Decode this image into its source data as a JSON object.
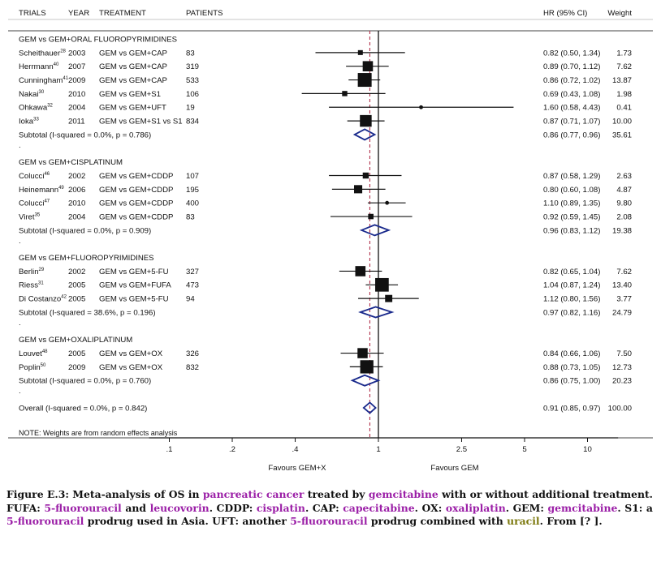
{
  "chart_data": {
    "type": "forest",
    "xscale": "log",
    "xlim": [
      0.08,
      14
    ],
    "null_line": 1,
    "overall_line": 0.91,
    "xticks": [
      {
        "v": 0.1,
        "label": ".1"
      },
      {
        "v": 0.2,
        "label": ".2"
      },
      {
        "v": 0.4,
        "label": ".4"
      },
      {
        "v": 1,
        "label": "1"
      },
      {
        "v": 2.5,
        "label": "2.5"
      },
      {
        "v": 5,
        "label": "5"
      },
      {
        "v": 10,
        "label": "10"
      }
    ],
    "favours_left": "Favours GEM+X",
    "favours_right": "Favours GEM",
    "headers": {
      "trials": "TRIALS",
      "year": "YEAR",
      "treatment": "TREATMENT",
      "patients": "PATIENTS",
      "hr": "HR (95% CI)",
      "weight": "Weight"
    },
    "rows": [
      {
        "kind": "group",
        "label": "GEM vs GEM+ORAL FLUOROPYRIMIDINES"
      },
      {
        "kind": "study",
        "name": "Scheithauer",
        "ref": "28",
        "year": "2003",
        "treatment": "GEM vs GEM+CAP",
        "patients": "83",
        "hr": 0.82,
        "lo": 0.5,
        "hi": 1.34,
        "text": "0.82 (0.50, 1.34)",
        "weight": 1.73,
        "wtext": "1.73"
      },
      {
        "kind": "study",
        "name": "Herrmann",
        "ref": "40",
        "year": "2007",
        "treatment": "GEM vs GEM+CAP",
        "patients": "319",
        "hr": 0.89,
        "lo": 0.7,
        "hi": 1.12,
        "text": "0.89 (0.70, 1.12)",
        "weight": 7.62,
        "wtext": "7.62"
      },
      {
        "kind": "study",
        "name": "Cunningham",
        "ref": "41",
        "year": "2009",
        "treatment": "GEM vs GEM+CAP",
        "patients": "533",
        "hr": 0.86,
        "lo": 0.72,
        "hi": 1.02,
        "text": "0.86 (0.72, 1.02)",
        "weight": 13.87,
        "wtext": "13.87"
      },
      {
        "kind": "study",
        "name": "Nakai",
        "ref": "30",
        "year": "2010",
        "treatment": "GEM vs GEM+S1",
        "patients": "106",
        "hr": 0.69,
        "lo": 0.43,
        "hi": 1.08,
        "text": "0.69 (0.43, 1.08)",
        "weight": 1.98,
        "wtext": "1.98"
      },
      {
        "kind": "study",
        "name": "Ohkawa",
        "ref": "32",
        "year": "2004",
        "treatment": "GEM vs GEM+UFT",
        "patients": "19",
        "hr": 1.6,
        "lo": 0.58,
        "hi": 4.43,
        "text": "1.60 (0.58, 4.43)",
        "weight": 0.41,
        "wtext": "0.41"
      },
      {
        "kind": "study",
        "name": "Ioka",
        "ref": "33",
        "year": "2011",
        "treatment": "GEM vs GEM+S1 vs S1",
        "patients": "834",
        "hr": 0.87,
        "lo": 0.71,
        "hi": 1.07,
        "text": "0.87 (0.71, 1.07)",
        "weight": 10.0,
        "wtext": "10.00"
      },
      {
        "kind": "subtotal",
        "label": "Subtotal  (I-squared = 0.0%, p = 0.786)",
        "hr": 0.86,
        "lo": 0.77,
        "hi": 0.96,
        "text": "0.86 (0.77, 0.96)",
        "wtext": "35.61"
      },
      {
        "kind": "dot"
      },
      {
        "kind": "group",
        "label": "GEM vs GEM+CISPLATINUM"
      },
      {
        "kind": "study",
        "name": "Colucci",
        "ref": "46",
        "year": "2002",
        "treatment": "GEM vs GEM+CDDP",
        "patients": "107",
        "hr": 0.87,
        "lo": 0.58,
        "hi": 1.29,
        "text": "0.87 (0.58, 1.29)",
        "weight": 2.63,
        "wtext": "2.63"
      },
      {
        "kind": "study",
        "name": "Heinemann",
        "ref": "49",
        "year": "2006",
        "treatment": "GEM vs GEM+CDDP",
        "patients": "195",
        "hr": 0.8,
        "lo": 0.6,
        "hi": 1.08,
        "text": "0.80 (0.60, 1.08)",
        "weight": 4.87,
        "wtext": "4.87"
      },
      {
        "kind": "study",
        "name": "Colucci",
        "ref": "47",
        "year": "2010",
        "treatment": "GEM vs GEM+CDDP",
        "patients": "400",
        "hr": 1.1,
        "lo": 0.89,
        "hi": 1.35,
        "text": "1.10 (0.89, 1.35)",
        "weight": 9.8,
        "wtext": "9.80",
        "marker": "point"
      },
      {
        "kind": "study",
        "name": "Viret",
        "ref": "35",
        "year": "2004",
        "treatment": "GEM vs GEM+CDDP",
        "patients": "83",
        "hr": 0.92,
        "lo": 0.59,
        "hi": 1.45,
        "text": "0.92 (0.59, 1.45)",
        "weight": 2.08,
        "wtext": "2.08"
      },
      {
        "kind": "subtotal",
        "label": "Subtotal  (I-squared = 0.0%, p = 0.909)",
        "hr": 0.96,
        "lo": 0.83,
        "hi": 1.12,
        "text": "0.96 (0.83, 1.12)",
        "wtext": "19.38"
      },
      {
        "kind": "dot"
      },
      {
        "kind": "group",
        "label": "GEM vs GEM+FLUOROPYRIMIDINES"
      },
      {
        "kind": "study",
        "name": "Berlin",
        "ref": "29",
        "year": "2002",
        "treatment": "GEM vs GEM+5-FU",
        "patients": "327",
        "hr": 0.82,
        "lo": 0.65,
        "hi": 1.04,
        "text": "0.82 (0.65, 1.04)",
        "weight": 7.62,
        "wtext": "7.62"
      },
      {
        "kind": "study",
        "name": "Riess",
        "ref": "31",
        "year": "2005",
        "treatment": "GEM vs GEM+FUFA",
        "patients": "473",
        "hr": 1.04,
        "lo": 0.87,
        "hi": 1.24,
        "text": "1.04 (0.87, 1.24)",
        "weight": 13.4,
        "wtext": "13.40"
      },
      {
        "kind": "study",
        "name": "Di Costanzo",
        "ref": "42",
        "year": "2005",
        "treatment": "GEM vs GEM+5-FU",
        "patients": "94",
        "hr": 1.12,
        "lo": 0.8,
        "hi": 1.56,
        "text": "1.12 (0.80, 1.56)",
        "weight": 3.77,
        "wtext": "3.77"
      },
      {
        "kind": "subtotal",
        "label": "Subtotal  (I-squared = 38.6%, p = 0.196)",
        "hr": 0.97,
        "lo": 0.82,
        "hi": 1.16,
        "text": "0.97 (0.82, 1.16)",
        "wtext": "24.79"
      },
      {
        "kind": "dot"
      },
      {
        "kind": "group",
        "label": "GEM vs GEM+OXALIPLATINUM"
      },
      {
        "kind": "study",
        "name": "Louvet",
        "ref": "48",
        "year": "2005",
        "treatment": "GEM vs GEM+OX",
        "patients": "326",
        "hr": 0.84,
        "lo": 0.66,
        "hi": 1.06,
        "text": "0.84 (0.66, 1.06)",
        "weight": 7.5,
        "wtext": "7.50"
      },
      {
        "kind": "study",
        "name": "Poplin",
        "ref": "50",
        "year": "2009",
        "treatment": "GEM vs GEM+OX",
        "patients": "832",
        "hr": 0.88,
        "lo": 0.73,
        "hi": 1.05,
        "text": "0.88 (0.73, 1.05)",
        "weight": 12.73,
        "wtext": "12.73"
      },
      {
        "kind": "subtotal",
        "label": "Subtotal  (I-squared = 0.0%, p = 0.760)",
        "hr": 0.86,
        "lo": 0.75,
        "hi": 1.0,
        "text": "0.86 (0.75, 1.00)",
        "wtext": "20.23"
      },
      {
        "kind": "dot"
      },
      {
        "kind": "overall",
        "label": "Overall  (I-squared = 0.0%, p = 0.842)",
        "hr": 0.91,
        "lo": 0.85,
        "hi": 0.97,
        "text": "0.91 (0.85, 0.97)",
        "wtext": "100.00"
      },
      {
        "kind": "gap"
      },
      {
        "kind": "note",
        "label": "NOTE: Weights are from random effects analysis"
      }
    ]
  },
  "caption": {
    "p1": "Figure E.3: Meta-analysis of OS in ",
    "t1": "pancreatic cancer",
    "p2": " treated by ",
    "t2": "gemcitabine",
    "p3": " with or without additional treatment.  FUFA: ",
    "t3": "5-fluorouracil",
    "p4": " and ",
    "t4": "leucovorin",
    "p5": ".  CDDP: ",
    "t5": "cisplatin",
    "p6": ".  CAP: ",
    "t6": "capecitabine",
    "p7": ".  OX: ",
    "t7": "oxaliplatin",
    "p8": ". GEM: ",
    "t8": "gemcitabine",
    "p9": ". S1: a ",
    "t9": "5-fluorouracil",
    "p10": " prodrug used in Asia. UFT: another ",
    "t10": "5-fluorouracil",
    "p11": " prodrug combined with ",
    "t11": "uracil",
    "p12": ". From [? ]."
  },
  "colors": {
    "ink": "#111111",
    "marker": "#111111",
    "diamond": "#1a2a8c",
    "dashed": "#b0304a",
    "term": "#9b1fa7",
    "term2": "#7d7a10"
  }
}
